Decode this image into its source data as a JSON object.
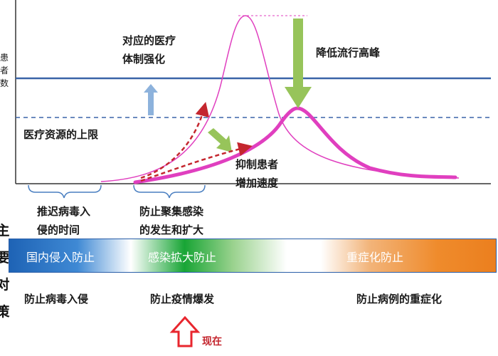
{
  "y_axis_label_partial": [
    "患",
    "者",
    "数"
  ],
  "left_cut_label": [
    "主",
    "要",
    "对",
    "策"
  ],
  "annotations": {
    "medical_system": [
      "对应的医疗",
      "体制强化"
    ],
    "medical_limit": "医疗资源的上限",
    "lower_peak": "降低流行高峰",
    "suppress": [
      "抑制患者",
      "增加速度"
    ]
  },
  "phases": [
    [
      "推迟病毒入",
      "侵的时间"
    ],
    [
      "防止聚集感染",
      "的发生和扩大"
    ]
  ],
  "band": {
    "labels": [
      "国内侵入防止",
      "感染拡大防止",
      "重症化防止"
    ],
    "colors": [
      "#1e63b5",
      "#18a535",
      "#ef8b2c"
    ]
  },
  "measures": [
    "防止病毒入侵",
    "防止疫情爆发",
    "防止病例的重症化"
  ],
  "now_label": "现在",
  "colors": {
    "curve": "#e03fbf",
    "capacity_line": "#3a64a8",
    "up_arrow": "#8db2dc",
    "down_arrow": "#97c45a",
    "trend_arrow": "#c4262e",
    "now_arrow": "#e8262e"
  }
}
